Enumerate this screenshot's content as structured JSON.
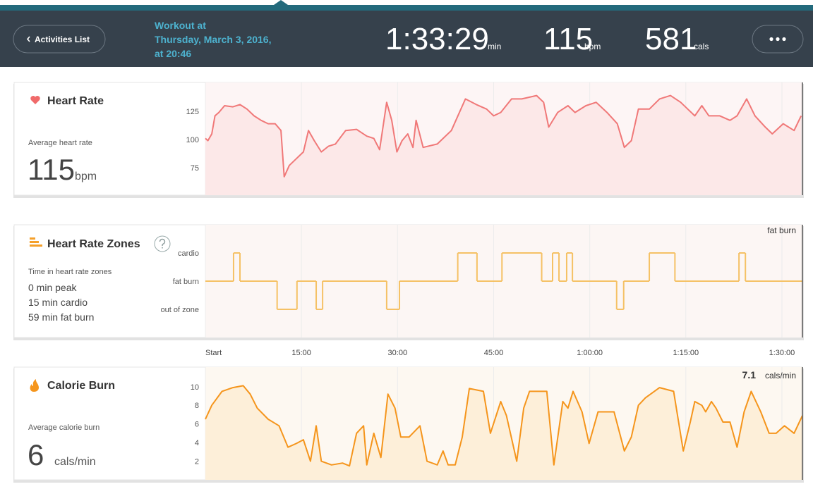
{
  "header": {
    "back_button": "Activities List",
    "workout_title": [
      "Workout at",
      "Thursday, March 3, 2016,",
      "at 20:46"
    ],
    "duration": "1:33:29",
    "duration_unit": "min",
    "heart_rate": 115,
    "heart_rate_unit": "bpm",
    "calories": 581,
    "calories_unit": "cals"
  },
  "chart_data": [
    {
      "type": "area",
      "title": "Heart Rate",
      "stat_label": "Average heart rate",
      "stat_value": 115,
      "stat_unit": "bpm",
      "x": [
        0,
        0.4,
        1.0,
        1.5,
        2.1,
        3.0,
        4.3,
        5.4,
        6.5,
        7.6,
        8.7,
        9.8,
        10.9,
        11.8,
        12.3,
        13.1,
        14.2,
        15.3,
        16.1,
        17.0,
        18.1,
        19.2,
        20.3,
        21.9,
        23.6,
        25.2,
        26.3,
        27.2,
        28.3,
        29.1,
        29.9,
        30.7,
        31.6,
        32.4,
        32.9,
        34.0,
        36.2,
        38.4,
        40.6,
        42.3,
        43.9,
        45.0,
        46.1,
        47.8,
        49.4,
        51.7,
        52.8,
        53.6,
        55.0,
        56.6,
        57.7,
        59.4,
        61.0,
        62.7,
        64.3,
        65.4,
        66.5,
        67.6,
        69.3,
        70.9,
        72.6,
        74.2,
        75.3,
        76.4,
        77.5,
        78.6,
        80.3,
        81.9,
        83.0,
        84.5,
        85.8,
        87.4,
        88.5,
        90.2,
        91.9,
        93.0
      ],
      "values": [
        101,
        99,
        105,
        121,
        124,
        130,
        129,
        131,
        127,
        121,
        117,
        114,
        114,
        108,
        67,
        77,
        83,
        89,
        108,
        99,
        89,
        94,
        96,
        108,
        109,
        103,
        101,
        91,
        133,
        117,
        89,
        99,
        105,
        93,
        117,
        93,
        96,
        108,
        136,
        131,
        127,
        121,
        124,
        136,
        136,
        139,
        133,
        111,
        124,
        130,
        124,
        130,
        133,
        124,
        114,
        93,
        99,
        127,
        127,
        136,
        139,
        133,
        127,
        121,
        130,
        121,
        121,
        117,
        121,
        136,
        121,
        111,
        105,
        114,
        108,
        121
      ],
      "color": "#f07878",
      "fill": "#fce8e8",
      "xlim": [
        0,
        93.2
      ],
      "xticks": [
        0,
        15,
        30,
        45,
        60,
        75,
        90
      ],
      "ylim": [
        50.6,
        150.6
      ],
      "yticks": [
        75,
        100,
        125
      ],
      "grid": true
    },
    {
      "type": "step",
      "title": "Heart Rate Zones",
      "stat_label": "Time in heart rate zones",
      "stat_lines": [
        "0 min peak",
        "15 min cardio",
        "59 min fat burn"
      ],
      "annotation": "fat burn",
      "x": [
        0,
        4.4,
        5.4,
        11.2,
        14.3,
        17.3,
        18.3,
        28.3,
        30.3,
        39.4,
        42.4,
        46.3,
        52.5,
        54.2,
        55.2,
        56.4,
        57.3,
        64.2,
        65.3,
        69.3,
        73.3,
        83.3,
        84.3
      ],
      "values": [
        1,
        2,
        1,
        0,
        1,
        0,
        1,
        0,
        1,
        2,
        1,
        2,
        1,
        2,
        1,
        2,
        1,
        0,
        1,
        2,
        1,
        2,
        1
      ],
      "color": "#f5c165",
      "xlim": [
        0,
        93.2
      ],
      "xticks": [
        {
          "value": 0,
          "label": "Start"
        },
        {
          "value": 15,
          "label": "15:00"
        },
        {
          "value": 30,
          "label": "30:00"
        },
        {
          "value": 45,
          "label": "45:00"
        },
        {
          "value": 60,
          "label": "1:00:00"
        },
        {
          "value": 75,
          "label": "1:15:00"
        },
        {
          "value": 90,
          "label": "1:30:00"
        }
      ],
      "ylim": [
        -1,
        3
      ],
      "yticks": [
        {
          "value": 2,
          "label": "cardio"
        },
        {
          "value": 1,
          "label": "fat burn"
        },
        {
          "value": 0,
          "label": "out of zone"
        }
      ],
      "grid": true
    },
    {
      "type": "area",
      "title": "Calorie Burn",
      "stat_label": "Average calorie burn",
      "stat_value": 6,
      "stat_unit": "cals/min",
      "current_value": 7.1,
      "current_unit": "cals/min",
      "x": [
        0,
        1.0,
        2.6,
        4.3,
        5.9,
        7.0,
        8.1,
        9.8,
        11.5,
        12.9,
        14.2,
        15.3,
        16.4,
        17.3,
        18.1,
        19.7,
        21.4,
        22.5,
        23.6,
        24.7,
        25.2,
        26.3,
        27.4,
        28.5,
        29.6,
        30.5,
        31.8,
        33.5,
        34.6,
        36.2,
        37.1,
        37.9,
        39.0,
        40.1,
        41.2,
        43.4,
        44.5,
        46.1,
        47.0,
        48.6,
        49.7,
        50.6,
        53.3,
        54.4,
        55.8,
        56.6,
        57.4,
        58.8,
        59.9,
        61.3,
        63.8,
        65.4,
        66.5,
        67.6,
        68.7,
        70.9,
        73.1,
        74.6,
        75.7,
        76.4,
        77.5,
        78.1,
        79.0,
        79.7,
        80.8,
        81.9,
        83.0,
        84.1,
        85.2,
        86.7,
        88.0,
        89.1,
        90.4,
        91.9,
        93.2
      ],
      "values": [
        6.5,
        8.0,
        9.5,
        9.9,
        10.1,
        9.2,
        7.7,
        6.5,
        5.8,
        3.5,
        3.9,
        4.3,
        2.0,
        5.8,
        2.0,
        1.6,
        1.8,
        1.5,
        5.0,
        5.8,
        1.6,
        5.0,
        2.4,
        9.2,
        7.7,
        4.6,
        4.6,
        5.8,
        2.0,
        1.6,
        3.1,
        1.6,
        1.6,
        4.6,
        9.8,
        9.5,
        5.0,
        8.4,
        6.9,
        2.0,
        7.7,
        9.5,
        9.5,
        1.6,
        8.4,
        7.7,
        9.5,
        7.3,
        3.9,
        7.3,
        7.3,
        3.1,
        4.6,
        8.0,
        8.8,
        9.9,
        9.5,
        3.1,
        6.2,
        8.4,
        8.0,
        7.3,
        8.4,
        7.7,
        6.2,
        6.2,
        3.5,
        7.3,
        9.5,
        7.3,
        5.0,
        5.0,
        5.8,
        5.0,
        6.9
      ],
      "color": "#f5951c",
      "fill": "#fdefd9",
      "xlim": [
        0,
        93.2
      ],
      "xticks": [
        0,
        15,
        30,
        45,
        60,
        75,
        90
      ],
      "ylim": [
        0,
        12.1
      ],
      "yticks": [
        2,
        4,
        6,
        8,
        10
      ],
      "grid": true
    }
  ]
}
